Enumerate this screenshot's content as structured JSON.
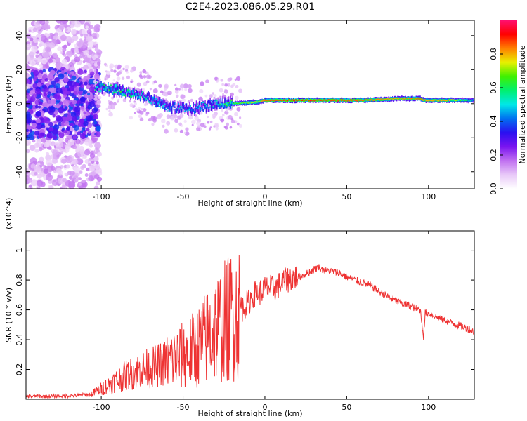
{
  "title": "C2E4.2023.086.05.29.R01",
  "chart_data": [
    {
      "type": "heatmap",
      "title": "",
      "xlabel": "Height of straight line (km)",
      "ylabel": "Frequency (Hz)",
      "xlim": [
        -146,
        128
      ],
      "ylim": [
        -50,
        49
      ],
      "xticks": [
        -100,
        -50,
        0,
        50,
        100
      ],
      "yticks": [
        -40,
        -20,
        0,
        20,
        40
      ],
      "colorbar": {
        "label": "Normalized spectral amplitude",
        "range": [
          0,
          1
        ],
        "ticks": [
          "0.0",
          "0.2",
          "0.4",
          "0.6",
          "0.8"
        ],
        "colors": [
          "#ffffff",
          "#e8c8f8",
          "#c070f0",
          "#7a14f0",
          "#2a10f0",
          "#0070f0",
          "#00e8e8",
          "#00f070",
          "#40f000",
          "#e8f000",
          "#ff8000",
          "#ff0000",
          "#ff1070"
        ]
      },
      "ridge": [
        {
          "x": -146,
          "freq": 4,
          "amp": 0.25
        },
        {
          "x": -106,
          "freq": 4,
          "amp": 0.3
        },
        {
          "x": -104,
          "freq": 10,
          "amp": 0.55
        },
        {
          "x": -90,
          "freq": 8,
          "amp": 0.6
        },
        {
          "x": -75,
          "freq": 5,
          "amp": 0.5
        },
        {
          "x": -60,
          "freq": -2,
          "amp": 0.45
        },
        {
          "x": -45,
          "freq": -3,
          "amp": 0.45
        },
        {
          "x": -30,
          "freq": 0,
          "amp": 0.5
        },
        {
          "x": -20,
          "freq": 0,
          "amp": 0.65
        },
        {
          "x": -5,
          "freq": 1,
          "amp": 0.75
        },
        {
          "x": 0,
          "freq": 2,
          "amp": 0.85
        },
        {
          "x": 20,
          "freq": 2,
          "amp": 0.9
        },
        {
          "x": 60,
          "freq": 2,
          "amp": 0.85
        },
        {
          "x": 80,
          "freq": 3,
          "amp": 0.8
        },
        {
          "x": 95,
          "freq": 3,
          "amp": 0.85
        },
        {
          "x": 97,
          "freq": 2,
          "amp": 0.8
        },
        {
          "x": 112,
          "freq": 2,
          "amp": 0.8
        },
        {
          "x": 128,
          "freq": 2,
          "amp": 0.5
        }
      ]
    },
    {
      "type": "line",
      "title": "",
      "xlabel": "Height of straight line (km)",
      "ylabel": "SNR (10 * v/v)",
      "y_multiplier": "(x10^4)",
      "xlim": [
        -146,
        128
      ],
      "ylim": [
        0,
        11300
      ],
      "xticks": [
        -100,
        -50,
        0,
        50,
        100
      ],
      "yticks": [
        0.2,
        0.4,
        0.6,
        0.8,
        1
      ],
      "series": [
        {
          "color": "#ee3333",
          "x": [
            -146,
            -130,
            -115,
            -106,
            -100,
            -95,
            -90,
            -85,
            -80,
            -75,
            -70,
            -65,
            -60,
            -55,
            -50,
            -45,
            -40,
            -35,
            -30,
            -25,
            -20,
            -15,
            -12,
            -10,
            -8,
            -5,
            -3,
            0,
            3,
            5,
            8,
            10,
            12,
            15,
            18,
            20,
            25,
            30,
            33,
            35,
            40,
            45,
            50,
            55,
            60,
            65,
            70,
            75,
            80,
            85,
            90,
            95,
            97,
            98,
            100,
            105,
            110,
            115,
            120,
            125,
            128
          ],
          "y": [
            200,
            200,
            250,
            350,
            700,
            1000,
            1300,
            1600,
            1800,
            2000,
            2100,
            2300,
            2500,
            2700,
            2900,
            3200,
            3600,
            4200,
            4800,
            5200,
            5600,
            5900,
            6300,
            6500,
            6900,
            7200,
            7200,
            7400,
            7500,
            7400,
            7600,
            7800,
            7900,
            8100,
            8200,
            8200,
            8400,
            8700,
            8900,
            8700,
            8600,
            8500,
            8200,
            8000,
            7800,
            7600,
            7200,
            6900,
            6600,
            6400,
            6200,
            6000,
            4200,
            5800,
            5800,
            5500,
            5300,
            5100,
            4900,
            4700,
            4500
          ]
        }
      ]
    }
  ]
}
